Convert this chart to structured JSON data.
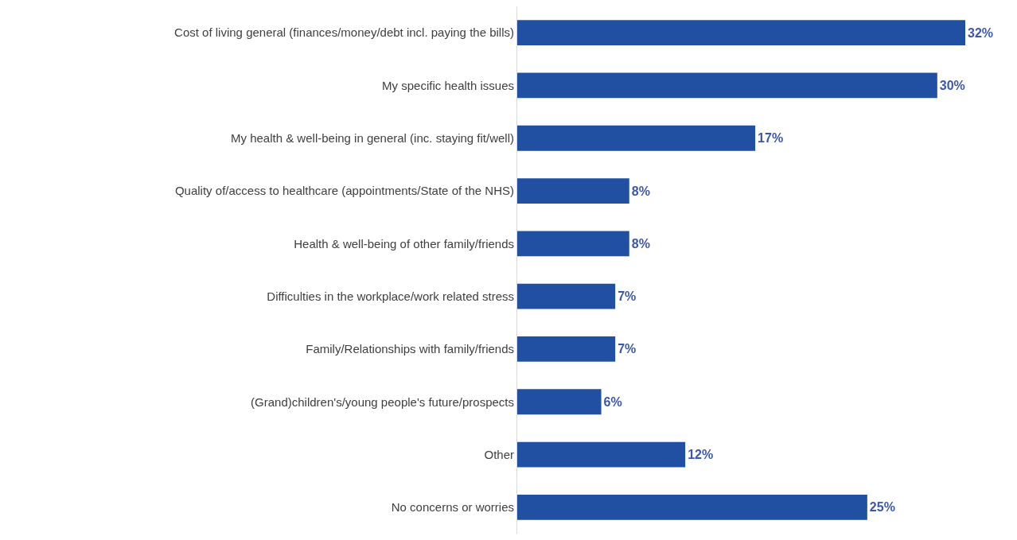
{
  "chart_data": {
    "type": "bar",
    "orientation": "horizontal",
    "categories": [
      "Cost of living general (finances/money/debt incl. paying the bills)",
      "My specific health issues",
      "My health & well-being in general (inc. staying fit/well)",
      "Quality of/access to healthcare (appointments/State of the NHS)",
      "Health & well-being of other family/friends",
      "Difficulties in the workplace/work related stress",
      "Family/Relationships with family/friends",
      "(Grand)children's/young people's future/prospects",
      "Other",
      "No concerns or worries"
    ],
    "values": [
      32,
      30,
      17,
      8,
      8,
      7,
      7,
      6,
      12,
      25
    ],
    "value_labels": [
      "32%",
      "30%",
      "17%",
      "8%",
      "8%",
      "7%",
      "7%",
      "6%",
      "12%",
      "25%"
    ],
    "color": "#2150a3",
    "grid": false,
    "legend": false
  }
}
